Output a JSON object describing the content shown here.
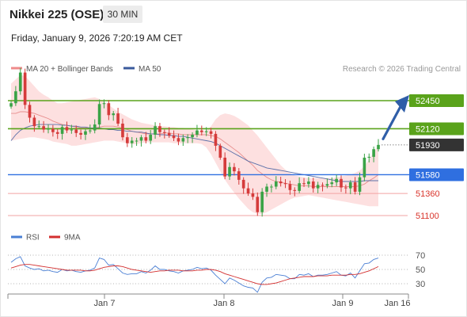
{
  "header": {
    "symbol": "Nikkei 225 (OSE)",
    "timeframe": "30 MIN",
    "datetime": "Friday, January 9, 2026 7:20:19 AM CET"
  },
  "legend": {
    "bollinger_label": "MA 20 + Bollinger Bands",
    "ma50_label": "MA 50",
    "bollinger_color": "#ef8b8b",
    "ma50_color": "#3a5a9c"
  },
  "watermark": "Research © 2026 Trading Central",
  "colors": {
    "up_candle": "#3aa346",
    "down_candle": "#d53b3b",
    "resistance": "#5aa31b",
    "pivot": "#2f6fe0",
    "support": "#f2a3a3",
    "support_text": "#d9342b",
    "last_price": "#333333",
    "arrow": "#2f5ea8",
    "band_fill": "#fde0e0"
  },
  "chart_data": [
    {
      "type": "candlestick",
      "title": "",
      "x_ticks": [
        "Jan 7",
        "Jan 8",
        "Jan 9",
        "Jan 16"
      ],
      "ylim": [
        51000,
        52800
      ],
      "levels": [
        {
          "value": 52450,
          "label": "52450",
          "kind": "resistance"
        },
        {
          "value": 52120,
          "label": "52120",
          "kind": "resistance"
        },
        {
          "value": 51930,
          "label": "51930",
          "kind": "last"
        },
        {
          "value": 51580,
          "label": "51580",
          "kind": "pivot"
        },
        {
          "value": 51360,
          "label": "51360",
          "kind": "support"
        },
        {
          "value": 51100,
          "label": "51100",
          "kind": "support"
        }
      ],
      "close": [
        52420,
        52560,
        52780,
        52400,
        52250,
        52150,
        52150,
        52110,
        52120,
        52080,
        52060,
        52140,
        52100,
        52110,
        52070,
        52050,
        52090,
        52100,
        52170,
        52410,
        52420,
        52280,
        52300,
        52180,
        52020,
        51950,
        51980,
        51980,
        52020,
        51980,
        52050,
        52150,
        52080,
        52070,
        52040,
        52010,
        51970,
        52010,
        52020,
        52050,
        52100,
        52080,
        52090,
        52060,
        51920,
        51780,
        51560,
        51670,
        51620,
        51520,
        51420,
        51360,
        51320,
        51140,
        51380,
        51440,
        51440,
        51500,
        51480,
        51470,
        51400,
        51390,
        51480,
        51470,
        51500,
        51420,
        51460,
        51450,
        51470,
        51490,
        51530,
        51430,
        51420,
        51490,
        51380,
        51550,
        51780,
        51790,
        51880,
        51930
      ],
      "ma20": [
        52300,
        52300,
        52320,
        52320,
        52310,
        52300,
        52280,
        52260,
        52240,
        52210,
        52190,
        52170,
        52160,
        52150,
        52140,
        52130,
        52130,
        52130,
        52130,
        52140,
        52150,
        52150,
        52150,
        52140,
        52130,
        52110,
        52090,
        52080,
        52070,
        52060,
        52060,
        52060,
        52060,
        52070,
        52070,
        52060,
        52060,
        52050,
        52050,
        52050,
        52050,
        52050,
        52050,
        52040,
        52030,
        52000,
        51960,
        51920,
        51880,
        51840,
        51790,
        51740,
        51690,
        51630,
        51590,
        51550,
        51520,
        51500,
        51490,
        51480,
        51470,
        51460,
        51450,
        51450,
        51450,
        51440,
        51440,
        51440,
        51440,
        51440,
        51440,
        51440,
        51440,
        51440,
        51440,
        51450,
        51470,
        51510,
        51540,
        51580
      ],
      "bollinger_upper": [
        52650,
        52700,
        52750,
        52740,
        52680,
        52620,
        52560,
        52520,
        52490,
        52450,
        52420,
        52420,
        52430,
        52440,
        52450,
        52460,
        52470,
        52480,
        52490,
        52470,
        52440,
        52400,
        52360,
        52320,
        52290,
        52260,
        52230,
        52210,
        52190,
        52180,
        52170,
        52160,
        52150,
        52150,
        52140,
        52140,
        52130,
        52130,
        52120,
        52110,
        52100,
        52090,
        52100,
        52150,
        52230,
        52280,
        52300,
        52290,
        52270,
        52240,
        52200,
        52160,
        52100,
        52040,
        51970,
        51900,
        51830,
        51760,
        51690,
        51640,
        51600,
        51570,
        51560,
        51550,
        51540,
        51540,
        51540,
        51540,
        51540,
        51540,
        51550,
        51560,
        51570,
        51580,
        51600,
        51630,
        51680,
        51760,
        51840,
        51920
      ],
      "bollinger_lower": [
        51980,
        51990,
        52000,
        52010,
        52020,
        52020,
        52010,
        52000,
        51990,
        51970,
        51960,
        51950,
        51940,
        51920,
        51920,
        51930,
        51940,
        51950,
        51960,
        51970,
        51980,
        51980,
        51980,
        51970,
        51960,
        51950,
        51940,
        51940,
        51950,
        51960,
        51960,
        51960,
        51960,
        51960,
        51960,
        51950,
        51950,
        51950,
        51950,
        51950,
        51950,
        51940,
        51900,
        51820,
        51720,
        51620,
        51520,
        51440,
        51370,
        51300,
        51240,
        51180,
        51140,
        51120,
        51120,
        51140,
        51170,
        51200,
        51230,
        51260,
        51290,
        51310,
        51320,
        51330,
        51340,
        51330,
        51320,
        51310,
        51300,
        51290,
        51280,
        51270,
        51260,
        51250,
        51240,
        51230,
        51220,
        51210,
        51210,
        51210
      ],
      "ma50": [
        51980,
        52050,
        52100,
        52130,
        52150,
        52160,
        52170,
        52170,
        52170,
        52170,
        52170,
        52160,
        52160,
        52150,
        52150,
        52140,
        52140,
        52130,
        52130,
        52130,
        52120,
        52110,
        52110,
        52100,
        52100,
        52090,
        52090,
        52080,
        52080,
        52070,
        52060,
        52060,
        52050,
        52050,
        52040,
        52040,
        52030,
        52030,
        52020,
        52010,
        52000,
        51990,
        51980,
        51970,
        51950,
        51920,
        51890,
        51860,
        51830,
        51800,
        51770,
        51740,
        51720,
        51700,
        51680,
        51660,
        51650,
        51640,
        51630,
        51620,
        51610,
        51600,
        51590,
        51580,
        51570,
        51560,
        51550,
        51540,
        51530,
        51520,
        51510,
        51500,
        51500,
        51500,
        51500,
        51500,
        51510,
        51510,
        51510,
        51510
      ]
    },
    {
      "type": "line",
      "title": "RSI",
      "series_names": [
        "RSI",
        "9MA"
      ],
      "y_ticks": [
        70,
        50,
        30
      ],
      "ylim": [
        10,
        90
      ],
      "rsi": [
        60,
        65,
        68,
        55,
        52,
        50,
        51,
        48,
        49,
        47,
        46,
        50,
        48,
        49,
        47,
        46,
        48,
        49,
        52,
        66,
        64,
        56,
        57,
        51,
        45,
        43,
        44,
        44,
        47,
        45,
        49,
        55,
        50,
        50,
        48,
        47,
        45,
        48,
        49,
        50,
        53,
        51,
        52,
        49,
        42,
        36,
        30,
        38,
        35,
        31,
        27,
        25,
        24,
        18,
        32,
        38,
        39,
        43,
        42,
        41,
        37,
        37,
        43,
        42,
        44,
        40,
        42,
        42,
        43,
        45,
        47,
        42,
        41,
        45,
        38,
        48,
        58,
        59,
        64,
        66
      ],
      "ma9": [
        52,
        54,
        56,
        57,
        57,
        56,
        55,
        54,
        53,
        52,
        51,
        50,
        49,
        49,
        49,
        49,
        48,
        48,
        49,
        51,
        53,
        54,
        55,
        55,
        54,
        52,
        50,
        49,
        48,
        47,
        46,
        47,
        48,
        48,
        49,
        49,
        49,
        48,
        48,
        48,
        49,
        49,
        50,
        50,
        49,
        47,
        44,
        42,
        40,
        38,
        36,
        34,
        32,
        30,
        29,
        29,
        30,
        31,
        33,
        35,
        37,
        38,
        39,
        40,
        40,
        40,
        41,
        41,
        41,
        42,
        42,
        42,
        42,
        43,
        43,
        44,
        46,
        48,
        51,
        54
      ],
      "overbought": 70,
      "oversold": 30
    }
  ]
}
